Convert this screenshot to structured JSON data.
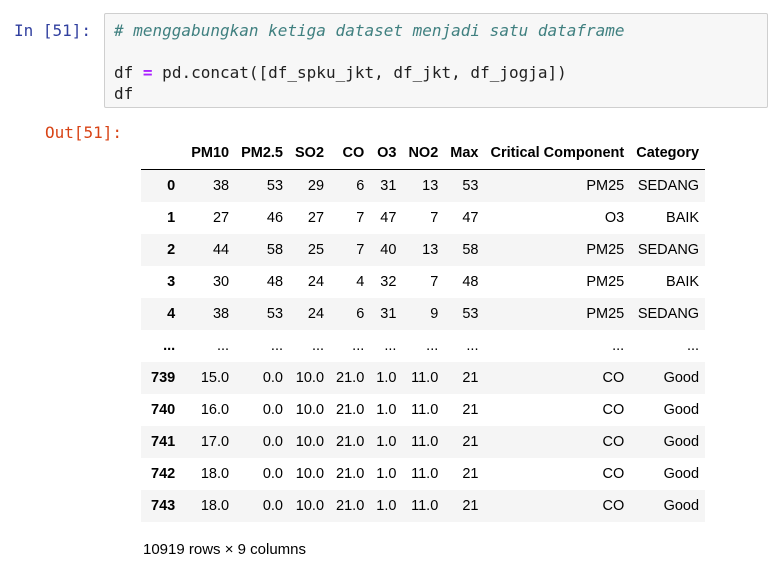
{
  "cell": {
    "in_prompt": "In [51]:",
    "out_prompt": "Out[51]:",
    "code_comment": "# menggabungkan ketiga dataset menjadi satu dataframe",
    "code_line2_a": "df ",
    "code_line2_op": "=",
    "code_line2_b": " pd.concat([df_spku_jkt, df_jkt, df_jogja])",
    "code_line3": "df"
  },
  "table": {
    "columns": [
      "",
      "PM10",
      "PM2.5",
      "SO2",
      "CO",
      "O3",
      "NO2",
      "Max",
      "Critical Component",
      "Category"
    ],
    "rows": [
      [
        "0",
        "38",
        "53",
        "29",
        "6",
        "31",
        "13",
        "53",
        "PM25",
        "SEDANG"
      ],
      [
        "1",
        "27",
        "46",
        "27",
        "7",
        "47",
        "7",
        "47",
        "O3",
        "BAIK"
      ],
      [
        "2",
        "44",
        "58",
        "25",
        "7",
        "40",
        "13",
        "58",
        "PM25",
        "SEDANG"
      ],
      [
        "3",
        "30",
        "48",
        "24",
        "4",
        "32",
        "7",
        "48",
        "PM25",
        "BAIK"
      ],
      [
        "4",
        "38",
        "53",
        "24",
        "6",
        "31",
        "9",
        "53",
        "PM25",
        "SEDANG"
      ],
      [
        "...",
        "...",
        "...",
        "...",
        "...",
        "...",
        "...",
        "...",
        "...",
        "..."
      ],
      [
        "739",
        "15.0",
        "0.0",
        "10.0",
        "21.0",
        "1.0",
        "11.0",
        "21",
        "CO",
        "Good"
      ],
      [
        "740",
        "16.0",
        "0.0",
        "10.0",
        "21.0",
        "1.0",
        "11.0",
        "21",
        "CO",
        "Good"
      ],
      [
        "741",
        "17.0",
        "0.0",
        "10.0",
        "21.0",
        "1.0",
        "11.0",
        "21",
        "CO",
        "Good"
      ],
      [
        "742",
        "18.0",
        "0.0",
        "10.0",
        "21.0",
        "1.0",
        "11.0",
        "21",
        "CO",
        "Good"
      ],
      [
        "743",
        "18.0",
        "0.0",
        "10.0",
        "21.0",
        "1.0",
        "11.0",
        "21",
        "CO",
        "Good"
      ]
    ],
    "shape_text": "10919 rows × 9 columns"
  }
}
